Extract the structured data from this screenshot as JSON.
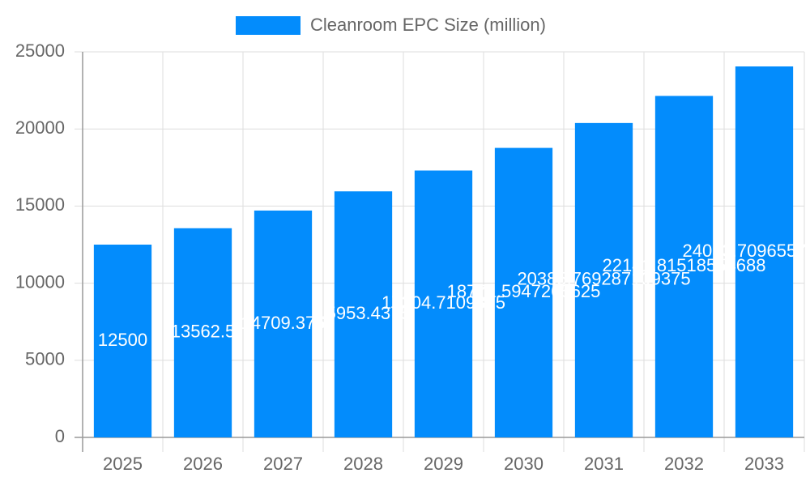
{
  "chart_data": {
    "type": "bar",
    "categories": [
      "2025",
      "2026",
      "2027",
      "2028",
      "2029",
      "2030",
      "2031",
      "2032",
      "2033"
    ],
    "series": [
      {
        "name": "Cleanroom EPC Size (million)",
        "color": "#038cfc",
        "values": [
          12500,
          13562.5,
          14709.375,
          15953.4375,
          17304.7109375,
          18771.5947265625,
          20385.769287109375,
          22141.81518554688,
          24053.70965576172
        ]
      }
    ],
    "ylim": [
      0,
      25000
    ],
    "yticks": [
      0,
      5000,
      10000,
      15000,
      20000,
      25000
    ],
    "grid": true,
    "legend": "top"
  }
}
